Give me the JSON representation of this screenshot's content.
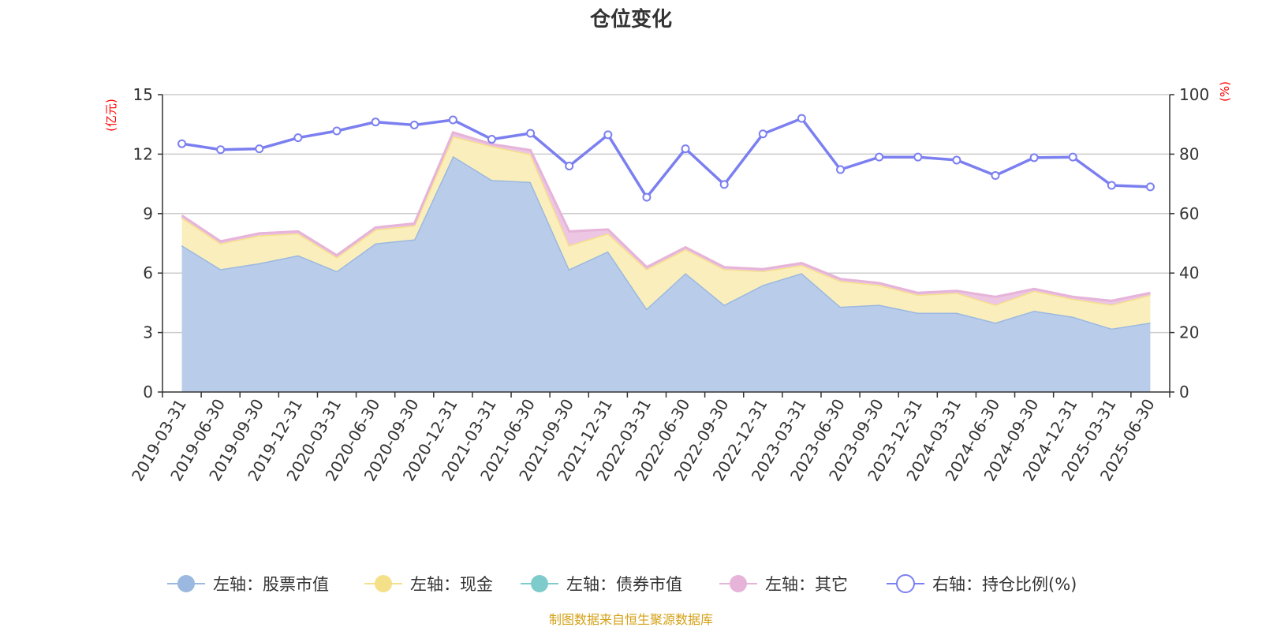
{
  "title": "仓位变化",
  "left_unit": "(亿元)",
  "right_unit": "(%)",
  "source": "制图数据来自恒生聚源数据库",
  "colors": {
    "stock": "#9bb8e0",
    "stock_fill": "#b9cdea",
    "cash": "#f5e08a",
    "cash_fill": "#fbeebd",
    "bond": "#7ecbcb",
    "other": "#e6b3d9",
    "other_fill": "#ecc6e2",
    "ratio": "#7b7ff0",
    "grid": "#cccccc",
    "axis": "#333333"
  },
  "chart_data": {
    "type": "area",
    "title": "仓位变化",
    "categories": [
      "2019-03-31",
      "2019-06-30",
      "2019-09-30",
      "2019-12-31",
      "2020-03-31",
      "2020-06-30",
      "2020-09-30",
      "2020-12-31",
      "2021-03-31",
      "2021-06-30",
      "2021-09-30",
      "2021-12-31",
      "2022-03-31",
      "2022-06-30",
      "2022-09-30",
      "2022-12-31",
      "2023-03-31",
      "2023-06-30",
      "2023-09-30",
      "2023-12-31",
      "2024-03-31",
      "2024-06-30",
      "2024-09-30",
      "2024-12-31",
      "2025-03-31",
      "2025-06-30"
    ],
    "left_axis": {
      "label": "(亿元)",
      "ylim": [
        0,
        15
      ],
      "ticks": [
        0,
        3,
        6,
        9,
        12,
        15
      ]
    },
    "right_axis": {
      "label": "(%)",
      "ylim": [
        0,
        100
      ],
      "ticks": [
        0,
        20,
        40,
        60,
        80,
        100
      ]
    },
    "grid": true,
    "legend_position": "bottom",
    "series": [
      {
        "name": "左轴：股票市值",
        "axis": "left",
        "stack": true,
        "values": [
          7.4,
          6.2,
          6.5,
          6.9,
          6.1,
          7.5,
          7.7,
          11.9,
          10.7,
          10.6,
          6.2,
          7.1,
          4.2,
          6.0,
          4.4,
          5.4,
          6.0,
          4.3,
          4.4,
          4.0,
          4.0,
          3.5,
          4.1,
          3.8,
          3.2,
          3.5
        ]
      },
      {
        "name": "左轴：现金",
        "axis": "left",
        "stack": true,
        "values": [
          1.4,
          1.3,
          1.4,
          1.1,
          0.7,
          0.7,
          0.7,
          1.0,
          1.7,
          1.4,
          1.2,
          0.9,
          2.0,
          1.2,
          1.8,
          0.7,
          0.4,
          1.3,
          1.0,
          0.9,
          1.0,
          0.9,
          1.0,
          0.9,
          1.2,
          1.4
        ]
      },
      {
        "name": "左轴：债券市值",
        "axis": "left",
        "stack": true,
        "values": [
          0,
          0,
          0,
          0,
          0,
          0,
          0,
          0,
          0,
          0,
          0,
          0,
          0,
          0,
          0,
          0,
          0,
          0,
          0,
          0,
          0,
          0,
          0,
          0,
          0,
          0
        ]
      },
      {
        "name": "左轴：其它",
        "axis": "left",
        "stack": true,
        "values": [
          0.1,
          0.1,
          0.1,
          0.1,
          0.1,
          0.1,
          0.1,
          0.2,
          0.1,
          0.2,
          0.7,
          0.2,
          0.1,
          0.1,
          0.1,
          0.1,
          0.1,
          0.1,
          0.1,
          0.1,
          0.1,
          0.4,
          0.1,
          0.1,
          0.2,
          0.1
        ]
      },
      {
        "name": "右轴：持仓比例(%)",
        "axis": "right",
        "type": "line",
        "values": [
          83.5,
          81.5,
          81.8,
          85.5,
          87.8,
          90.8,
          89.8,
          91.5,
          85.0,
          87.0,
          76.0,
          86.5,
          65.5,
          81.8,
          69.8,
          86.8,
          92.0,
          74.8,
          79.0,
          79.0,
          78.0,
          72.8,
          78.8,
          79.0,
          69.5,
          69.0
        ]
      }
    ]
  },
  "legend": [
    {
      "label": "左轴：股票市值",
      "icon": "filled-circle",
      "color": "#9bb8e0"
    },
    {
      "label": "左轴：现金",
      "icon": "filled-circle",
      "color": "#f5e08a"
    },
    {
      "label": "左轴：债券市值",
      "icon": "filled-circle",
      "color": "#7ecbcb"
    },
    {
      "label": "左轴：其它",
      "icon": "filled-circle",
      "color": "#e6b3d9"
    },
    {
      "label": "右轴：持仓比例(%)",
      "icon": "hollow-circle",
      "color": "#7b7ff0"
    }
  ]
}
